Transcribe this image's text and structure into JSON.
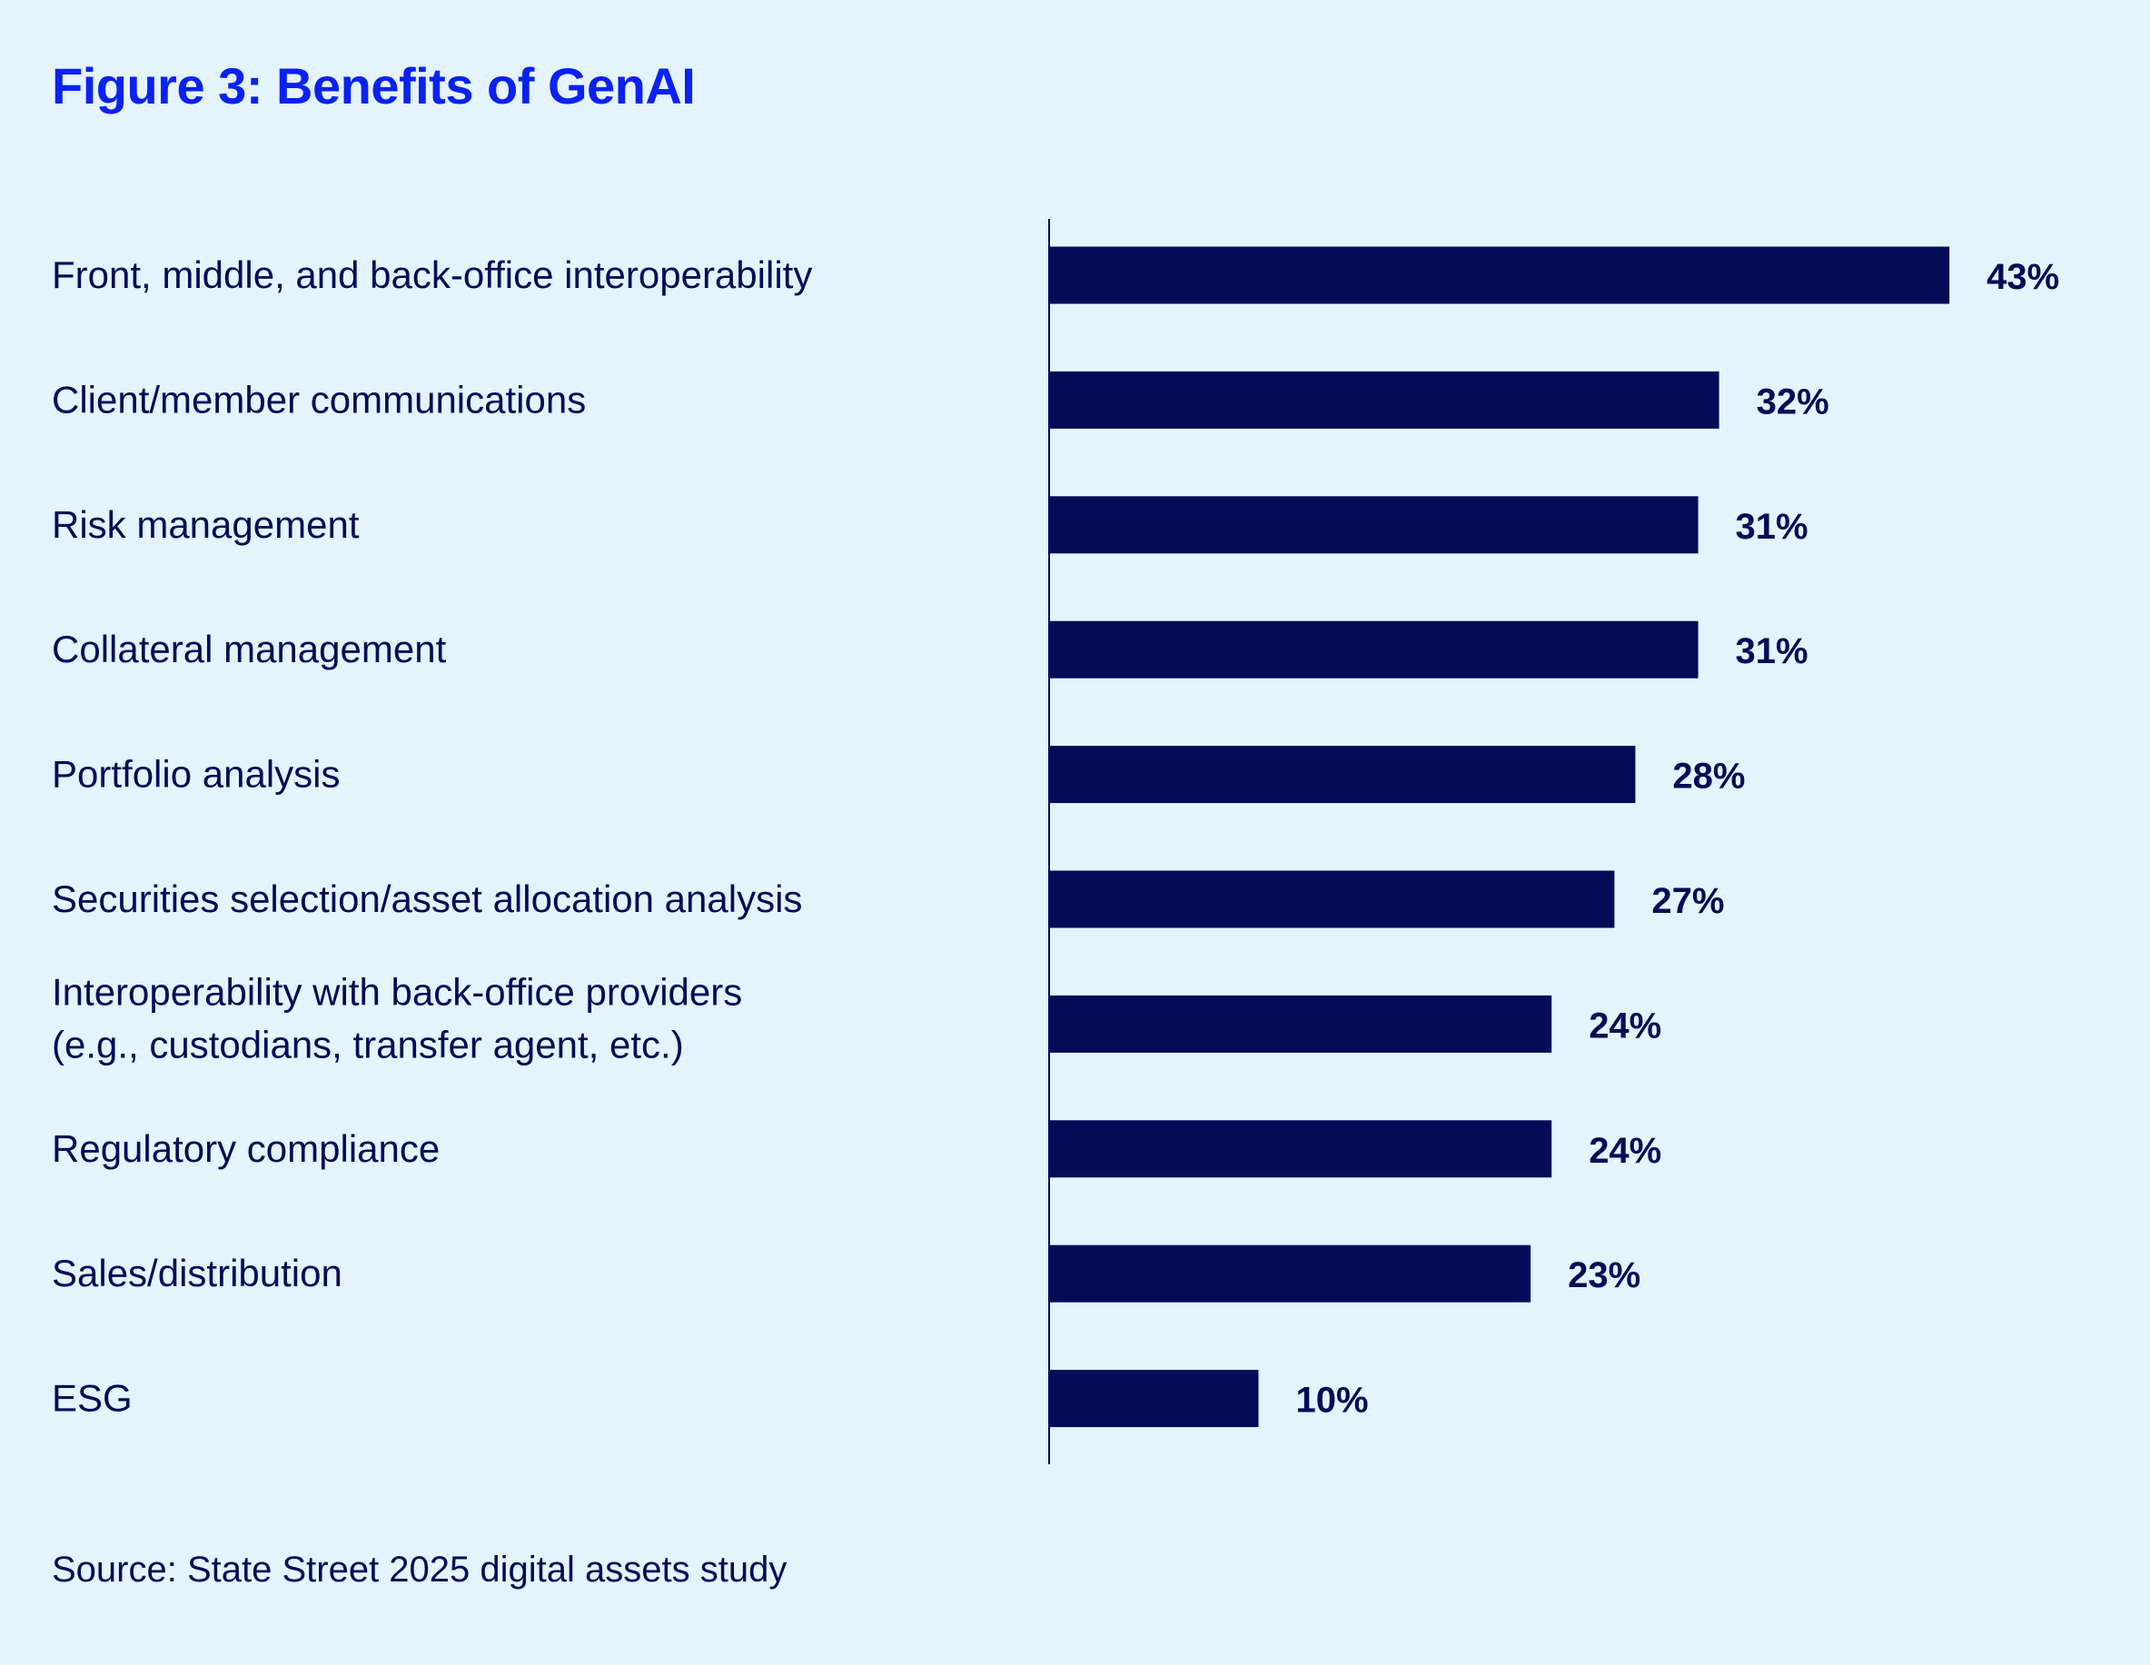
{
  "chart_data": {
    "type": "bar",
    "orientation": "horizontal",
    "title": "Figure 3: Benefits of GenAI",
    "categories": [
      [
        "Front, middle, and back-office interoperability"
      ],
      [
        "Client/member communications"
      ],
      [
        "Risk management"
      ],
      [
        "Collateral management"
      ],
      [
        "Portfolio analysis"
      ],
      [
        "Securities selection/asset allocation analysis"
      ],
      [
        "Interoperability with back-office providers",
        "(e.g., custodians, transfer agent, etc.)"
      ],
      [
        "Regulatory compliance"
      ],
      [
        "Sales/distribution"
      ],
      [
        "ESG"
      ]
    ],
    "values": [
      43,
      32,
      31,
      31,
      28,
      27,
      24,
      24,
      23,
      10
    ],
    "value_labels": [
      "43%",
      "32%",
      "31%",
      "31%",
      "28%",
      "27%",
      "24%",
      "24%",
      "23%",
      "10%"
    ],
    "unit": "%",
    "grid": false,
    "bar_color": "#040c57",
    "title_color": "#0a22f0",
    "background": "#e5f3fc"
  },
  "source": "Source: State Street 2025 digital assets study"
}
